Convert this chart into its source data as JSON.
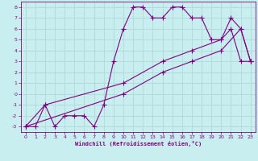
{
  "xlabel": "Windchill (Refroidissement éolien,°C)",
  "bg_color": "#c8eef0",
  "line_color": "#800080",
  "grid_color": "#aadddd",
  "xlim": [
    -0.5,
    23.5
  ],
  "ylim": [
    -3.5,
    8.5
  ],
  "xticks": [
    0,
    1,
    2,
    3,
    4,
    5,
    6,
    7,
    8,
    9,
    10,
    11,
    12,
    13,
    14,
    15,
    16,
    17,
    18,
    19,
    20,
    21,
    22,
    23
  ],
  "yticks": [
    -3,
    -2,
    -1,
    0,
    1,
    2,
    3,
    4,
    5,
    6,
    7,
    8
  ],
  "line1_x": [
    0,
    1,
    2,
    3,
    4,
    5,
    6,
    7,
    8,
    9,
    10,
    11,
    12,
    13,
    14,
    15,
    16,
    17,
    18,
    19,
    20,
    21,
    22,
    23
  ],
  "line1_y": [
    -3,
    -3,
    -1,
    -3,
    -2,
    -2,
    -2,
    -3,
    -1,
    3,
    6,
    8,
    8,
    7,
    7,
    8,
    8,
    7,
    7,
    5,
    5,
    6,
    3,
    3
  ],
  "line2_x": [
    0,
    2,
    10,
    14,
    17,
    20,
    21,
    22,
    23
  ],
  "line2_y": [
    -3,
    -1,
    1,
    3,
    4,
    5,
    7,
    6,
    3
  ],
  "line3_x": [
    0,
    10,
    14,
    17,
    20,
    22,
    23
  ],
  "line3_y": [
    -3,
    0,
    2,
    3,
    4,
    6,
    3
  ]
}
